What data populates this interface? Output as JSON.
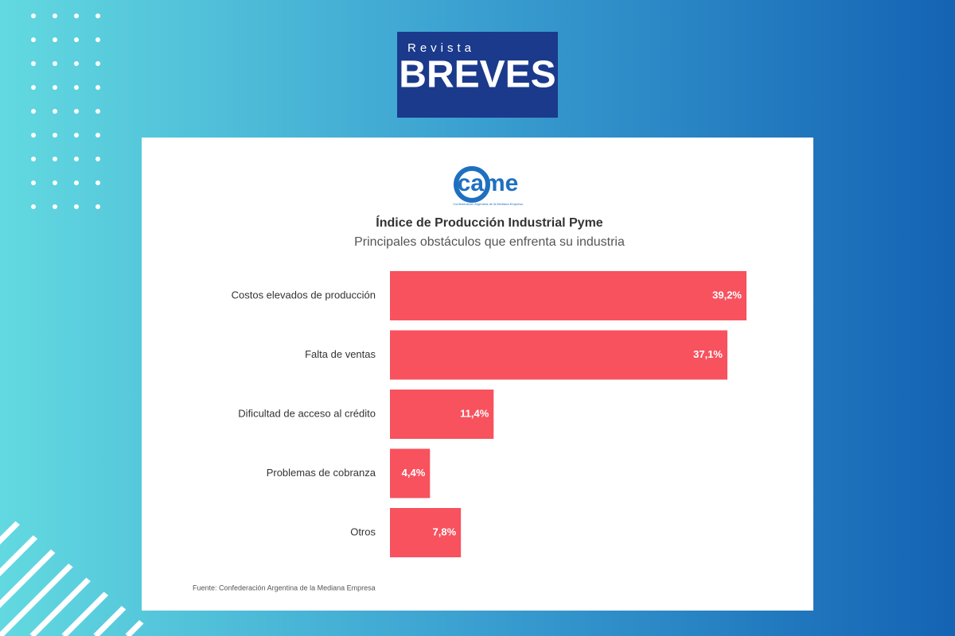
{
  "brand": {
    "top": "Revista",
    "name": "BREVES"
  },
  "chart_data": {
    "type": "bar",
    "orientation": "horizontal",
    "logo": "came",
    "logo_caption": "Confederación Argentina de la Mediana Empresa",
    "title": "Índice de Producción Industrial Pyme",
    "subtitle": "Principales obstáculos que enfrenta su industria",
    "categories": [
      "Costos elevados de producción",
      "Falta de ventas",
      "Dificultad de acceso al crédito",
      "Problemas de cobranza",
      "Otros"
    ],
    "values": [
      39.2,
      37.1,
      11.4,
      4.4,
      7.8
    ],
    "value_labels": [
      "39,2%",
      "37,1%",
      "11,4%",
      "4,4%",
      "7,8%"
    ],
    "color": "#f7525e",
    "source": "Fuente: Confederación Argentina de la Mediana Empresa"
  }
}
